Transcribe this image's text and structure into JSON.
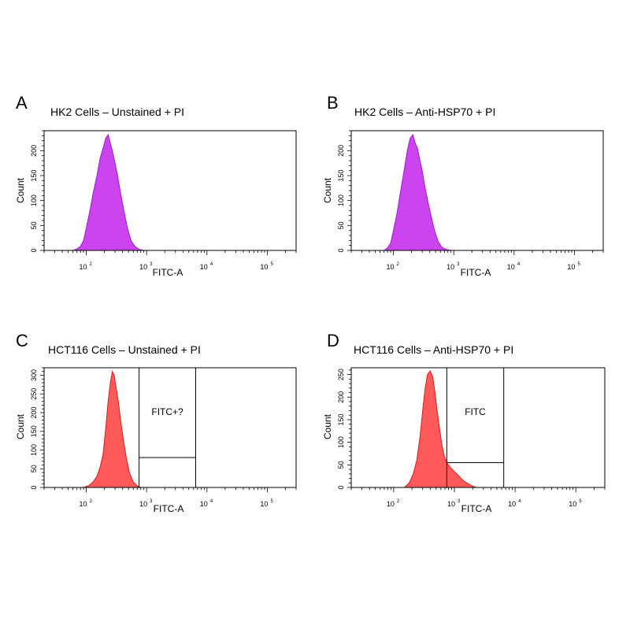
{
  "chart_data": [
    {
      "panel": "A",
      "type": "area",
      "title": "HK2 Cells – Unstained + PI",
      "xlabel": "FITC-A",
      "ylabel": "Count",
      "x_scale": "log",
      "xlim": [
        20,
        300000
      ],
      "ylim": [
        0,
        240
      ],
      "yticks": [
        0,
        50,
        100,
        150,
        200
      ],
      "xticks": [
        {
          "base": "10",
          "exp": "2",
          "value": 100
        },
        {
          "base": "10",
          "exp": "3",
          "value": 1000
        },
        {
          "base": "10",
          "exp": "4",
          "value": 10000
        },
        {
          "base": "10",
          "exp": "5",
          "value": 100000
        }
      ],
      "color": "#cc44ee",
      "stroke": "#9a1fc8",
      "series": {
        "x": [
          60,
          70,
          80,
          90,
          100,
          115,
          130,
          150,
          170,
          190,
          210,
          230,
          250,
          270,
          300,
          330,
          370,
          420,
          480,
          550,
          640,
          750,
          900
        ],
        "y": [
          0,
          3,
          8,
          20,
          45,
          80,
          115,
          150,
          185,
          205,
          225,
          232,
          215,
          200,
          175,
          150,
          115,
          80,
          45,
          20,
          8,
          2,
          0
        ]
      },
      "gates": []
    },
    {
      "panel": "B",
      "type": "area",
      "title": "HK2 Cells – Anti-HSP70  + PI",
      "xlabel": "FITC-A",
      "ylabel": "Count",
      "x_scale": "log",
      "xlim": [
        20,
        300000
      ],
      "ylim": [
        0,
        240
      ],
      "yticks": [
        0,
        50,
        100,
        150,
        200
      ],
      "xticks": [
        {
          "base": "10",
          "exp": "2",
          "value": 100
        },
        {
          "base": "10",
          "exp": "3",
          "value": 1000
        },
        {
          "base": "10",
          "exp": "4",
          "value": 10000
        },
        {
          "base": "10",
          "exp": "5",
          "value": 100000
        }
      ],
      "color": "#cc44ee",
      "stroke": "#9a1fc8",
      "series": {
        "x": [
          70,
          80,
          90,
          100,
          115,
          130,
          150,
          170,
          190,
          210,
          230,
          250,
          270,
          300,
          330,
          370,
          420,
          480,
          550,
          640,
          750,
          900
        ],
        "y": [
          0,
          5,
          15,
          40,
          75,
          115,
          160,
          200,
          225,
          232,
          215,
          205,
          185,
          160,
          130,
          100,
          70,
          40,
          18,
          6,
          2,
          0
        ]
      },
      "gates": []
    },
    {
      "panel": "C",
      "type": "area",
      "title": "HCT116 Cells – Unstained + PI",
      "xlabel": "FITC-A",
      "ylabel": "Count",
      "x_scale": "log",
      "xlim": [
        20,
        300000
      ],
      "ylim": [
        0,
        320
      ],
      "yticks": [
        0,
        50,
        100,
        150,
        200,
        250,
        300
      ],
      "xticks": [
        {
          "base": "10",
          "exp": "2",
          "value": 100
        },
        {
          "base": "10",
          "exp": "3",
          "value": 1000
        },
        {
          "base": "10",
          "exp": "4",
          "value": 10000
        },
        {
          "base": "10",
          "exp": "5",
          "value": 100000
        }
      ],
      "color": "#ff5a5a",
      "stroke": "#d42020",
      "series": {
        "x": [
          90,
          110,
          130,
          150,
          170,
          190,
          210,
          230,
          250,
          270,
          290,
          310,
          340,
          370,
          410,
          460,
          520,
          600,
          700,
          800
        ],
        "y": [
          0,
          5,
          15,
          30,
          55,
          90,
          160,
          230,
          280,
          310,
          300,
          270,
          230,
          180,
          130,
          80,
          40,
          15,
          4,
          0
        ]
      },
      "gates": [
        {
          "label": "FITC+?",
          "x0": 750,
          "x1": 6500,
          "y_split": 80
        }
      ]
    },
    {
      "panel": "D",
      "type": "area",
      "title": "HCT116 Cells – Anti-HSP70 + PI",
      "xlabel": "FITC-A",
      "ylabel": "Count",
      "x_scale": "log",
      "xlim": [
        20,
        300000
      ],
      "ylim": [
        0,
        265
      ],
      "yticks": [
        0,
        50,
        100,
        150,
        200,
        250
      ],
      "xticks": [
        {
          "base": "10",
          "exp": "2",
          "value": 100
        },
        {
          "base": "10",
          "exp": "3",
          "value": 1000
        },
        {
          "base": "10",
          "exp": "4",
          "value": 10000
        },
        {
          "base": "10",
          "exp": "5",
          "value": 100000
        }
      ],
      "color": "#ff5a5a",
      "stroke": "#d42020",
      "series": {
        "x": [
          150,
          180,
          210,
          240,
          270,
          300,
          330,
          360,
          400,
          440,
          480,
          520,
          570,
          620,
          680,
          750,
          850,
          1000,
          1200,
          1400,
          1700,
          2000,
          2300
        ],
        "y": [
          0,
          10,
          30,
          60,
          110,
          170,
          220,
          250,
          258,
          245,
          210,
          170,
          130,
          95,
          70,
          55,
          45,
          35,
          25,
          15,
          8,
          3,
          0
        ]
      },
      "gates": [
        {
          "label": "FITC",
          "x0": 750,
          "x1": 6500,
          "y_split": 55
        }
      ]
    }
  ]
}
